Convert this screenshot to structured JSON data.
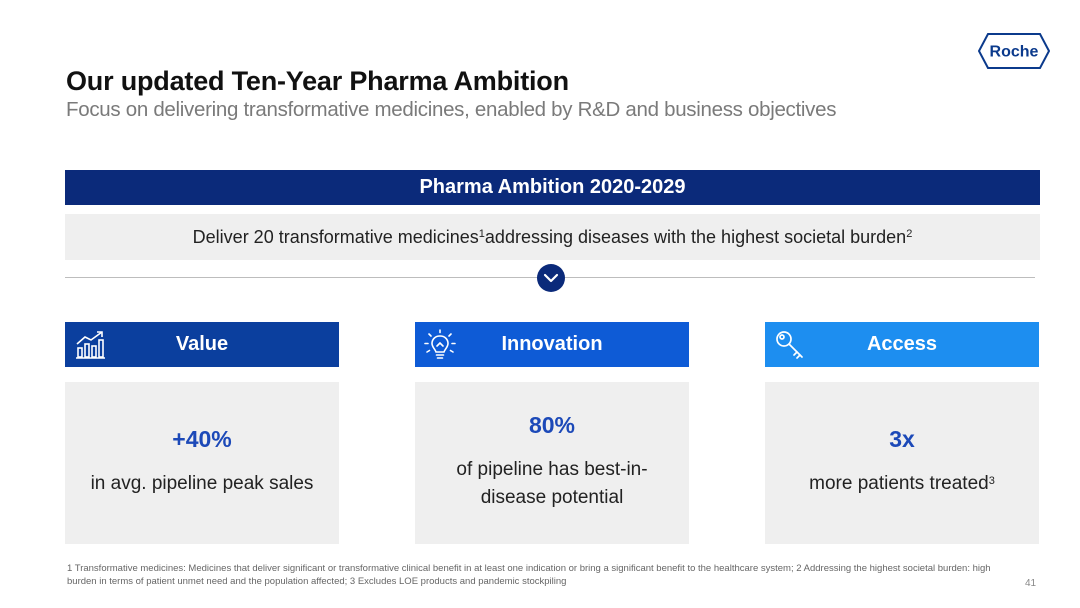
{
  "brand": {
    "logo_text": "Roche",
    "color": "#0b3a8c"
  },
  "header": {
    "title": "Our updated Ten-Year Pharma Ambition",
    "subtitle": "Focus on delivering transformative medicines, enabled by R&D and business objectives"
  },
  "banner": {
    "title": "Pharma Ambition 2020-2029",
    "color": "#0b2a7a"
  },
  "goal": {
    "text_before": "Deliver 20 transformative medicines",
    "sup1": "1",
    "text_after": " addressing diseases with the highest societal burden",
    "sup2": "2"
  },
  "divider_icon": "chevron-down-icon",
  "pillars": [
    {
      "label": "Value",
      "icon": "bar-chart-trend-icon",
      "color": "#0b3f9e",
      "metric": "+40%",
      "desc": "in avg. pipeline peak sales",
      "sup": ""
    },
    {
      "label": "Innovation",
      "icon": "lightbulb-icon",
      "color": "#0e5bd6",
      "metric": "80%",
      "desc": "of pipeline has best-in-disease potential",
      "sup": ""
    },
    {
      "label": "Access",
      "icon": "key-icon",
      "color": "#1d8ef0",
      "metric": "3x",
      "desc": "more patients treated",
      "sup": "3"
    }
  ],
  "footnote": "1 Transformative medicines: Medicines that deliver significant or transformative clinical benefit in at least one indication or bring a significant benefit to the healthcare system; 2 Addressing the highest societal burden: high burden in terms of patient unmet need and the population affected; 3 Excludes LOE products and pandemic stockpiling",
  "page_number": "41"
}
